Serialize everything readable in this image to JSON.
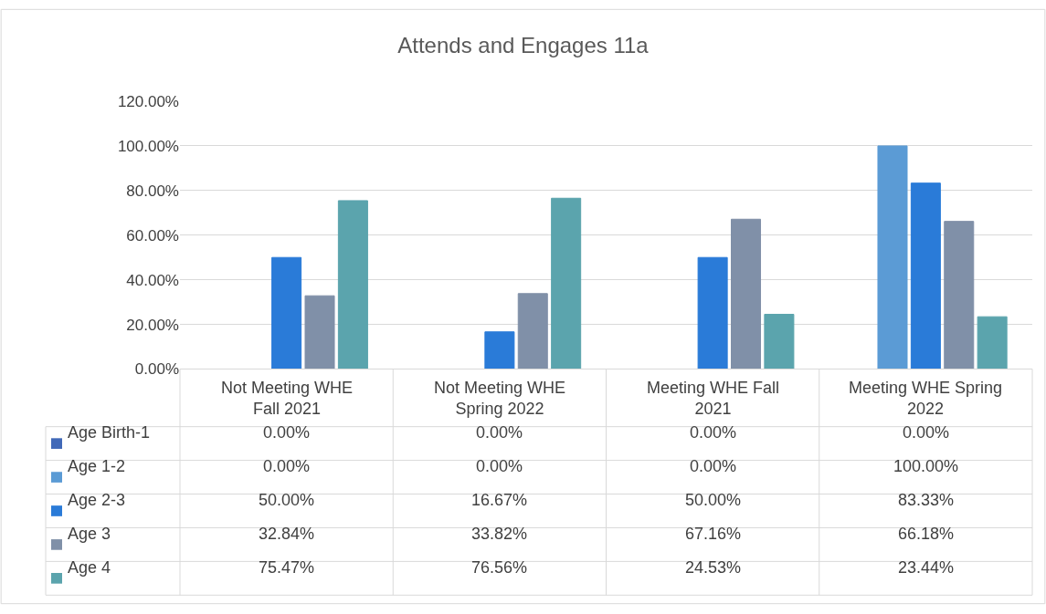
{
  "chart_data": {
    "type": "bar",
    "title": "Attends and Engages 11a",
    "categories": [
      "Not Meeting WHE Fall 2021",
      "Not Meeting WHE Spring 2022",
      "Meeting WHE Fall 2021",
      "Meeting WHE Spring 2022"
    ],
    "series": [
      {
        "name": "Age Birth-1",
        "color": "#4169b8",
        "values": [
          0,
          0,
          0,
          0
        ],
        "value_labels": [
          "0.00%",
          "0.00%",
          "0.00%",
          "0.00%"
        ]
      },
      {
        "name": "Age 1-2",
        "color": "#5b9bd5",
        "values": [
          0,
          0,
          0,
          100
        ],
        "value_labels": [
          "0.00%",
          "0.00%",
          "0.00%",
          "100.00%"
        ]
      },
      {
        "name": "Age 2-3",
        "color": "#2a7bd8",
        "values": [
          50,
          16.67,
          50,
          83.33
        ],
        "value_labels": [
          "50.00%",
          "16.67%",
          "50.00%",
          "83.33%"
        ]
      },
      {
        "name": "Age 3",
        "color": "#8090a8",
        "values": [
          32.84,
          33.82,
          67.16,
          66.18
        ],
        "value_labels": [
          "32.84%",
          "33.82%",
          "67.16%",
          "66.18%"
        ]
      },
      {
        "name": "Age 4",
        "color": "#5ba4ad",
        "values": [
          75.47,
          76.56,
          24.53,
          23.44
        ],
        "value_labels": [
          "75.47%",
          "76.56%",
          "24.53%",
          "23.44%"
        ]
      }
    ],
    "ylim": [
      0,
      120
    ],
    "yticks": [
      {
        "value": 0,
        "label": "0.00%"
      },
      {
        "value": 20,
        "label": "20.00%"
      },
      {
        "value": 40,
        "label": "40.00%"
      },
      {
        "value": 60,
        "label": "60.00%"
      },
      {
        "value": 80,
        "label": "80.00%"
      },
      {
        "value": 100,
        "label": "100.00%"
      },
      {
        "value": 120,
        "label": "120.00%"
      }
    ],
    "grid": "y",
    "legend": "bottom"
  }
}
